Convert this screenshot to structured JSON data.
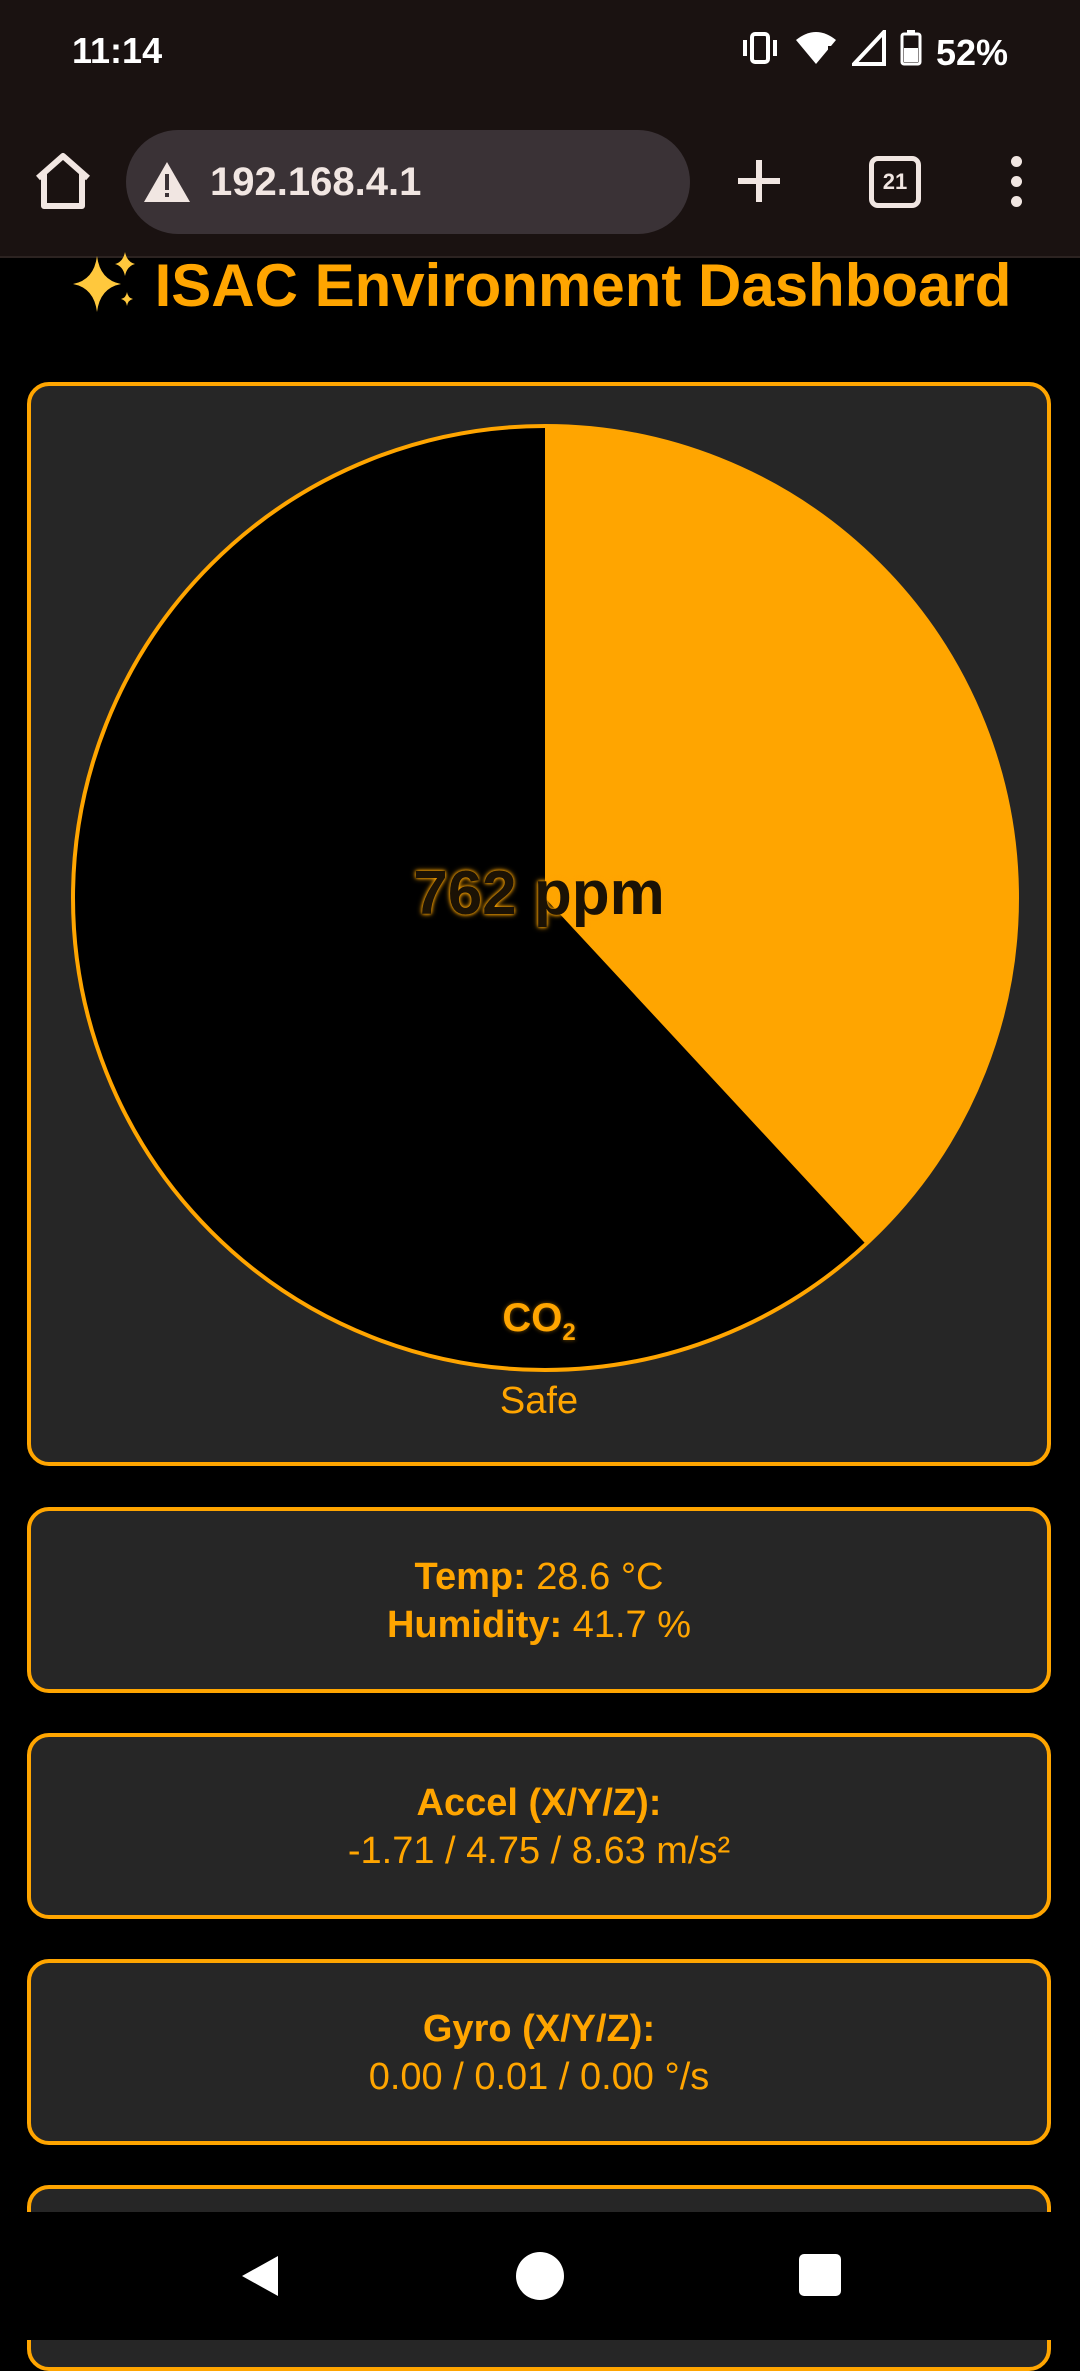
{
  "status_bar": {
    "time": "11:14",
    "battery": "52%"
  },
  "browser": {
    "url": "192.168.4.1",
    "tab_count": "21"
  },
  "page": {
    "title": "ISAC Environment Dashboard"
  },
  "co2": {
    "value": "762 ppm",
    "label": "CO",
    "label_sub": "2",
    "status": "Safe",
    "fill_fraction": 0.381
  },
  "env": {
    "temp_label": "Temp:",
    "temp_value": "28.6 °C",
    "humidity_label": "Humidity:",
    "humidity_value": "41.7 %"
  },
  "accel": {
    "label": "Accel (X/Y/Z):",
    "value": "-1.71 / 4.75 / 8.63 m/s²"
  },
  "gyro": {
    "label": "Gyro (X/Y/Z):",
    "value": "0.00 / 0.01 / 0.00 °/s"
  },
  "colors": {
    "accent": "#ffa500",
    "background": "#000000",
    "card": "#262626"
  }
}
